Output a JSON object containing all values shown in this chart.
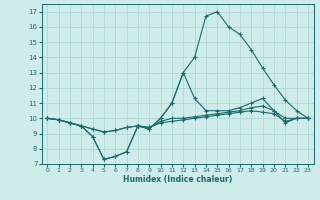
{
  "xlabel": "Humidex (Indice chaleur)",
  "xlim": [
    -0.5,
    23.5
  ],
  "ylim": [
    7,
    17.5
  ],
  "yticks": [
    7,
    8,
    9,
    10,
    11,
    12,
    13,
    14,
    15,
    16,
    17
  ],
  "xticks": [
    0,
    1,
    2,
    3,
    4,
    5,
    6,
    7,
    8,
    9,
    10,
    11,
    12,
    13,
    14,
    15,
    16,
    17,
    18,
    19,
    20,
    21,
    22,
    23
  ],
  "bg_color": "#cdecea",
  "grid_color": "#aad4d0",
  "line_color": "#1a6b6b",
  "lines": [
    {
      "x": [
        0,
        1,
        2,
        3,
        4,
        5,
        6,
        7,
        8,
        9,
        10,
        11,
        12,
        13,
        14,
        15,
        16,
        17,
        18,
        19,
        20,
        21,
        22,
        23
      ],
      "y": [
        10.0,
        9.9,
        9.7,
        9.5,
        8.8,
        7.3,
        7.5,
        7.8,
        9.5,
        9.3,
        10.0,
        11.0,
        13.0,
        14.0,
        16.7,
        17.0,
        16.0,
        15.5,
        14.5,
        13.3,
        12.2,
        11.2,
        10.5,
        10.0
      ]
    },
    {
      "x": [
        0,
        1,
        2,
        3,
        4,
        5,
        6,
        7,
        8,
        9,
        10,
        11,
        12,
        13,
        14,
        15,
        16,
        17,
        18,
        19,
        20,
        21,
        22,
        23
      ],
      "y": [
        10.0,
        9.9,
        9.7,
        9.5,
        8.8,
        7.3,
        7.5,
        7.8,
        9.5,
        9.3,
        10.0,
        11.0,
        13.0,
        11.3,
        10.5,
        10.5,
        10.5,
        10.7,
        11.0,
        11.3,
        10.5,
        9.7,
        10.0,
        10.0
      ]
    },
    {
      "x": [
        0,
        1,
        2,
        3,
        4,
        5,
        6,
        7,
        8,
        9,
        10,
        11,
        12,
        13,
        14,
        15,
        16,
        17,
        18,
        19,
        20,
        21,
        22,
        23
      ],
      "y": [
        10.0,
        9.9,
        9.7,
        9.5,
        9.3,
        9.1,
        9.2,
        9.4,
        9.5,
        9.4,
        9.8,
        10.0,
        10.0,
        10.1,
        10.2,
        10.3,
        10.4,
        10.5,
        10.7,
        10.8,
        10.5,
        10.0,
        10.0,
        10.0
      ]
    },
    {
      "x": [
        0,
        1,
        2,
        3,
        4,
        5,
        6,
        7,
        8,
        9,
        10,
        11,
        12,
        13,
        14,
        15,
        16,
        17,
        18,
        19,
        20,
        21,
        22,
        23
      ],
      "y": [
        10.0,
        9.9,
        9.7,
        9.5,
        9.3,
        9.1,
        9.2,
        9.4,
        9.5,
        9.4,
        9.7,
        9.8,
        9.9,
        10.0,
        10.1,
        10.2,
        10.3,
        10.4,
        10.5,
        10.4,
        10.3,
        9.8,
        10.0,
        10.0
      ]
    }
  ]
}
